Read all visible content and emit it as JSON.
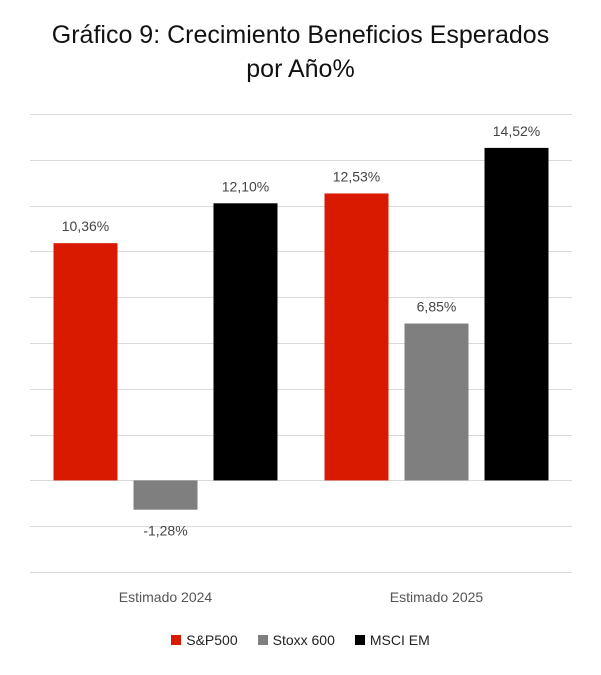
{
  "chart_data": {
    "type": "bar",
    "title_line1": "Gráfico 9: Crecimiento Beneficios Esperados",
    "title_line2": "por Año%",
    "categories": [
      "Estimado 2024",
      "Estimado 2025"
    ],
    "series": [
      {
        "name": "S&P500",
        "color": "#d91a00",
        "values": [
          10.36,
          12.53
        ],
        "labels": [
          "10,36%",
          "12,53%"
        ]
      },
      {
        "name": "Stoxx 600",
        "color": "#7f7f7f",
        "values": [
          -1.28,
          6.85
        ],
        "labels": [
          "-1,28%",
          "6,85%"
        ]
      },
      {
        "name": "MSCI EM",
        "color": "#000000",
        "values": [
          12.1,
          14.52
        ],
        "labels": [
          "12,10%",
          "14,52%"
        ]
      }
    ],
    "ylim": [
      -4,
      16
    ],
    "grid": true,
    "legend_position": "bottom"
  }
}
